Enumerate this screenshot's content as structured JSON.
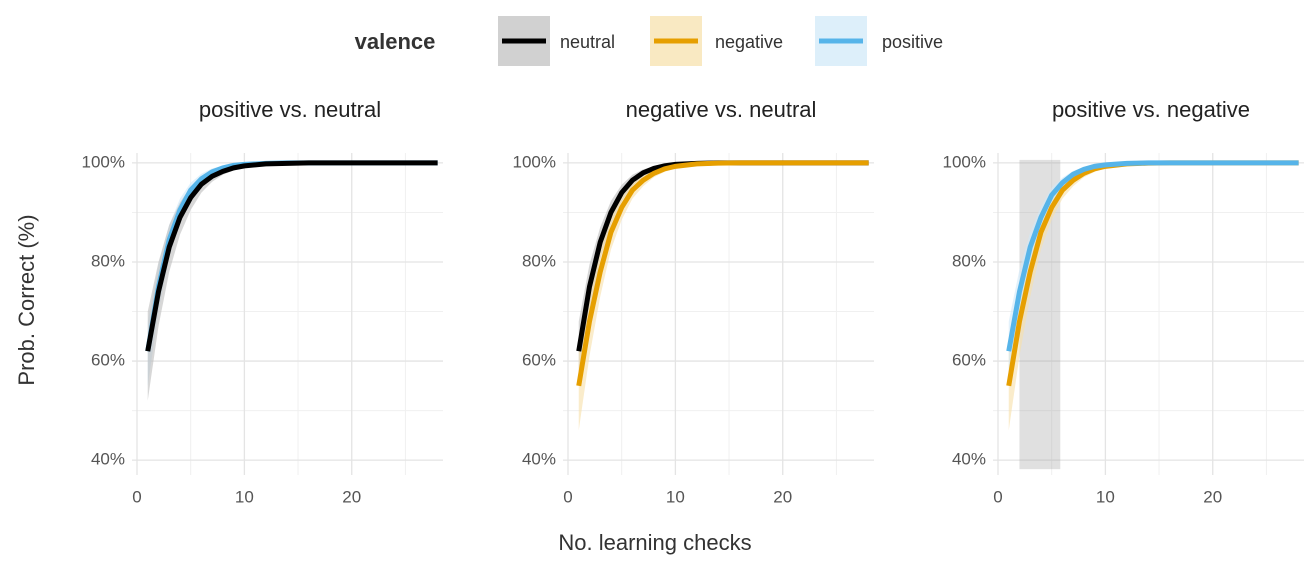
{
  "chart_data": [
    {
      "type": "line",
      "title": "positive vs. neutral",
      "legend_title": "valence",
      "xlabel": "No. learning checks",
      "ylabel": "Prob. Correct (%)",
      "x": [
        1,
        2,
        3,
        4,
        5,
        6,
        7,
        8,
        9,
        10,
        12,
        14,
        16,
        20,
        24,
        28
      ],
      "xlim": [
        0,
        28.5
      ],
      "xticks": [
        0,
        10,
        20
      ],
      "xminor": [
        5,
        15,
        25
      ],
      "ylim": [
        37,
        102
      ],
      "yticks": [
        {
          "value": 40,
          "label": "40%"
        },
        {
          "value": 60,
          "label": "60%"
        },
        {
          "value": 80,
          "label": "80%"
        },
        {
          "value": 100,
          "label": "100%"
        }
      ],
      "yminor": [
        50,
        70,
        90
      ],
      "grid": true,
      "series": [
        {
          "name": "positive",
          "color": "#56b4e9",
          "band_color": "#cfe8f8",
          "values": [
            62,
            75,
            84.5,
            90.5,
            94.5,
            96.8,
            98.2,
            99,
            99.5,
            99.7,
            99.9,
            100,
            100,
            100,
            100,
            100
          ],
          "lower": [
            55,
            70,
            81,
            88,
            92.8,
            95.6,
            97.4,
            98.5,
            99.1,
            99.4,
            99.8,
            99.9,
            100,
            100,
            100,
            100
          ],
          "upper": [
            68,
            79.5,
            87.5,
            92.8,
            96,
            97.8,
            98.9,
            99.4,
            99.8,
            99.9,
            100,
            100,
            100,
            100,
            100,
            100
          ]
        },
        {
          "name": "neutral",
          "color": "#000000",
          "band_color": "#bdbdbd",
          "values": [
            62,
            74,
            83,
            89,
            93,
            95.7,
            97.3,
            98.3,
            99,
            99.4,
            99.8,
            99.9,
            100,
            100,
            100,
            100
          ],
          "lower": [
            52,
            67,
            78,
            85.5,
            90.5,
            94,
            96.2,
            97.6,
            98.5,
            99,
            99.6,
            99.8,
            99.9,
            100,
            100,
            100
          ],
          "upper": [
            70,
            80,
            87.5,
            92,
            95.2,
            97.2,
            98.4,
            99,
            99.5,
            99.7,
            99.9,
            100,
            100,
            100,
            100,
            100
          ]
        }
      ]
    },
    {
      "type": "line",
      "title": "negative vs. neutral",
      "x": [
        1,
        2,
        3,
        4,
        5,
        6,
        7,
        8,
        9,
        10,
        12,
        14,
        16,
        20,
        24,
        28
      ],
      "xlim": [
        0,
        28.5
      ],
      "xticks": [
        0,
        10,
        20
      ],
      "xminor": [
        5,
        15,
        25
      ],
      "ylim": [
        37,
        102
      ],
      "yticks": [
        {
          "value": 40,
          "label": "40%"
        },
        {
          "value": 60,
          "label": "60%"
        },
        {
          "value": 80,
          "label": "80%"
        },
        {
          "value": 100,
          "label": "100%"
        }
      ],
      "yminor": [
        50,
        70,
        90
      ],
      "grid": true,
      "series": [
        {
          "name": "neutral",
          "color": "#000000",
          "band_color": "#bdbdbd",
          "values": [
            62,
            75,
            84,
            90,
            94,
            96.5,
            98,
            98.9,
            99.4,
            99.7,
            99.9,
            100,
            100,
            100,
            100,
            100
          ],
          "lower": [
            55,
            70,
            80.5,
            87.5,
            92.2,
            95.3,
            97.2,
            98.3,
            99,
            99.4,
            99.8,
            99.9,
            100,
            100,
            100,
            100
          ],
          "upper": [
            68,
            79.5,
            87,
            92.3,
            95.6,
            97.6,
            98.7,
            99.3,
            99.7,
            99.9,
            100,
            100,
            100,
            100,
            100,
            100
          ]
        },
        {
          "name": "negative",
          "color": "#e69f00",
          "band_color": "#f6dfa8",
          "values": [
            55,
            68,
            78,
            86,
            91,
            94.5,
            96.5,
            97.9,
            98.8,
            99.3,
            99.8,
            99.95,
            100,
            100,
            100,
            100
          ],
          "lower": [
            46,
            61,
            73,
            82.5,
            88.5,
            92.8,
            95.3,
            97.1,
            98.2,
            98.9,
            99.6,
            99.9,
            100,
            100,
            100,
            100
          ],
          "upper": [
            62,
            74,
            82.5,
            89,
            93.3,
            96,
            97.6,
            98.6,
            99.3,
            99.6,
            99.9,
            100,
            100,
            100,
            100,
            100
          ]
        }
      ]
    },
    {
      "type": "line",
      "title": "positive vs. negative",
      "x": [
        1,
        2,
        3,
        4,
        5,
        6,
        7,
        8,
        9,
        10,
        12,
        14,
        16,
        20,
        24,
        28
      ],
      "xlim": [
        0,
        28.5
      ],
      "xticks": [
        0,
        10,
        20
      ],
      "xminor": [
        5,
        15,
        25
      ],
      "ylim": [
        37,
        102
      ],
      "yticks": [
        {
          "value": 40,
          "label": "40%"
        },
        {
          "value": 60,
          "label": "60%"
        },
        {
          "value": 80,
          "label": "80%"
        },
        {
          "value": 100,
          "label": "100%"
        }
      ],
      "yminor": [
        50,
        70,
        90
      ],
      "grid": true,
      "shade": [
        2,
        5.8
      ],
      "series": [
        {
          "name": "negative",
          "color": "#e69f00",
          "band_color": "#f6dfa8",
          "values": [
            55,
            68,
            78,
            86,
            91,
            94.5,
            96.5,
            97.9,
            98.8,
            99.3,
            99.8,
            99.95,
            100,
            100,
            100,
            100
          ],
          "lower": [
            46,
            61,
            73,
            82.5,
            88.5,
            92.8,
            95.3,
            97.1,
            98.2,
            98.9,
            99.6,
            99.9,
            100,
            100,
            100,
            100
          ],
          "upper": [
            62,
            74,
            82.5,
            89,
            93.3,
            96,
            97.6,
            98.6,
            99.3,
            99.6,
            99.9,
            100,
            100,
            100,
            100,
            100
          ]
        },
        {
          "name": "positive",
          "color": "#56b4e9",
          "band_color": "#cfe8f8",
          "values": [
            62,
            74,
            83,
            89,
            93.5,
            96,
            97.7,
            98.7,
            99.3,
            99.6,
            99.9,
            100,
            100,
            100,
            100,
            100
          ],
          "lower": [
            55,
            69,
            79.5,
            86.5,
            91.8,
            94.8,
            96.9,
            98.2,
            99,
            99.4,
            99.8,
            99.9,
            100,
            100,
            100,
            100
          ],
          "upper": [
            68,
            78.5,
            86,
            91.2,
            95,
            97,
            98.4,
            99.2,
            99.6,
            99.8,
            100,
            100,
            100,
            100,
            100,
            100
          ]
        }
      ]
    }
  ]
}
